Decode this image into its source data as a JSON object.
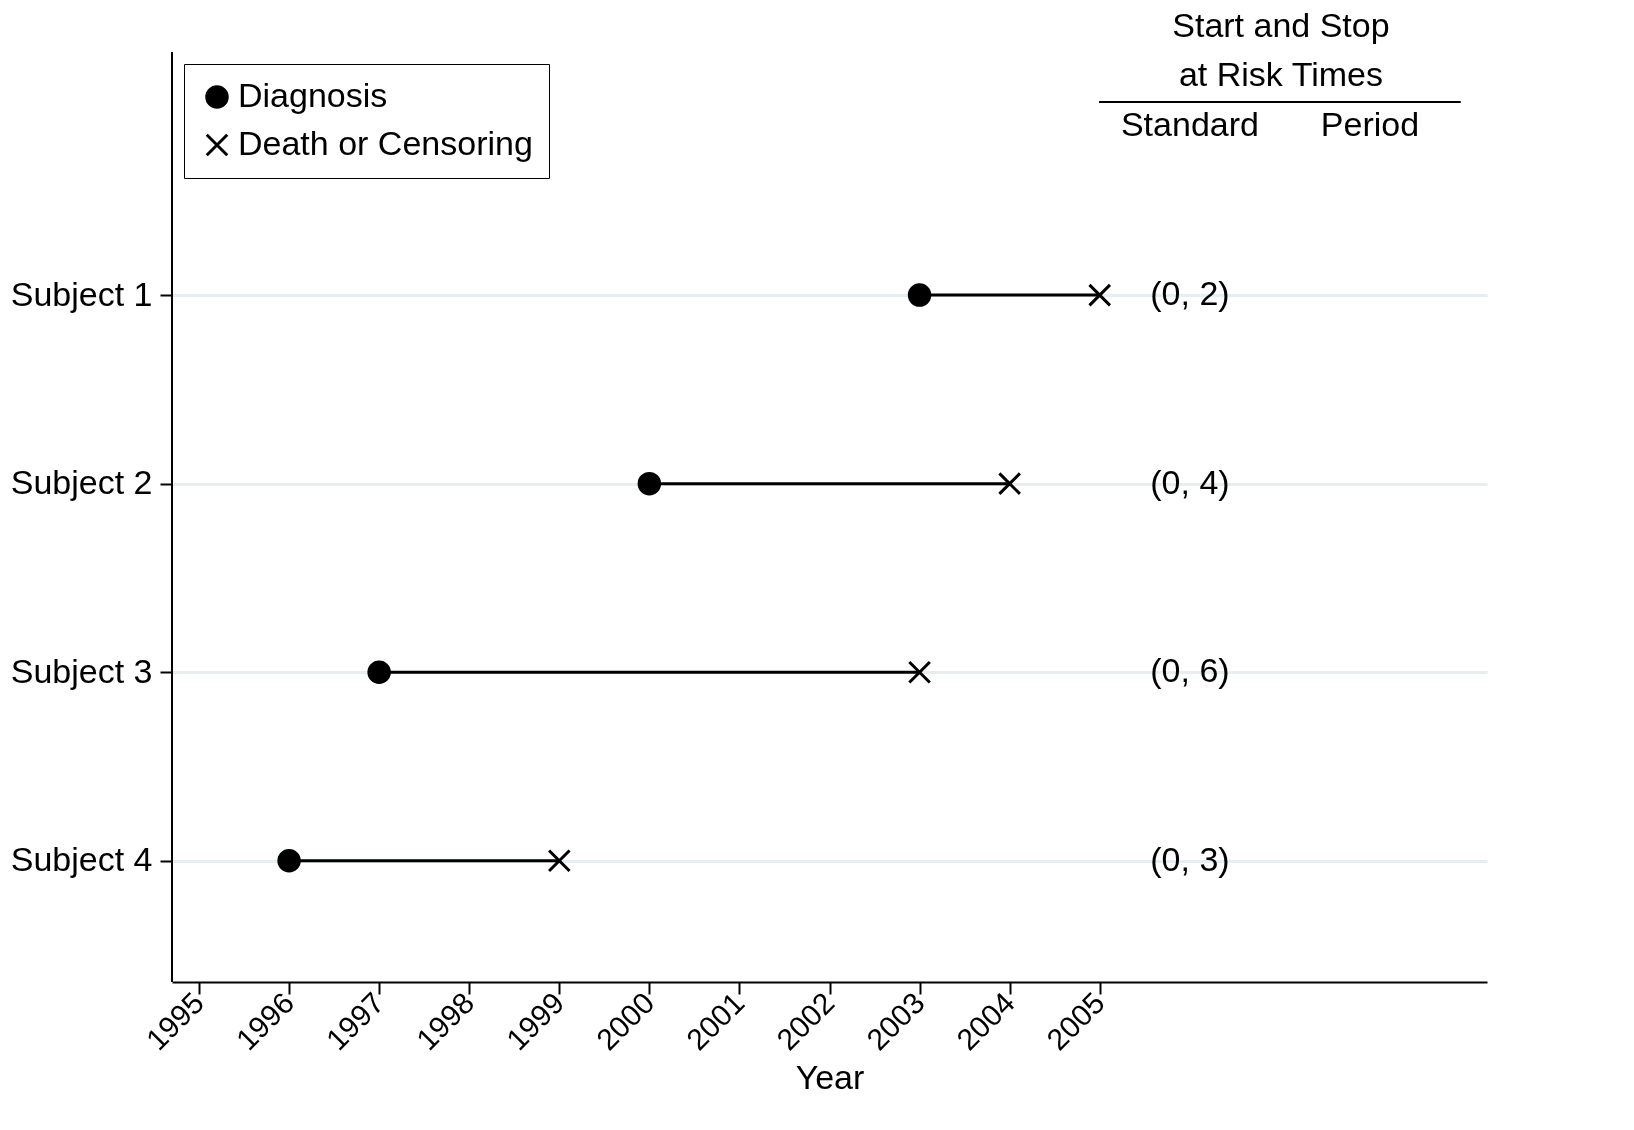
{
  "chart_data": {
    "type": "bar",
    "orientation": "horizontal",
    "xlabel": "Year",
    "categories": [
      "Subject 1",
      "Subject 2",
      "Subject 3",
      "Subject 4"
    ],
    "series": [
      {
        "type": "bar",
        "color": "#000000",
        "base": [
          2003,
          2000,
          1997,
          1996
        ],
        "values": [
          2,
          4,
          6,
          3
        ]
      },
      {
        "type": "scatter",
        "name": "Diagnosis",
        "color": "#000000",
        "marker": "circle",
        "values": [
          2003,
          2000,
          1997,
          1996
        ]
      },
      {
        "type": "scatter",
        "name": "Death or Censoring",
        "color": "#000000",
        "marker": "cross",
        "values": [
          2005,
          2004,
          2003,
          1999
        ]
      }
    ],
    "xlim": [
      1994.7,
      2009.3
    ],
    "xticks": [
      1995,
      1996,
      1997,
      1998,
      1999,
      2000,
      2001,
      2002,
      2003,
      2004,
      2005
    ],
    "grid": "y",
    "legend": "top left",
    "annotations": [
      "Start and Stop",
      "at Risk Times",
      "Standard",
      "Period",
      "(0, 2)",
      "(0, 4)",
      "(0, 6)",
      "(0, 3)"
    ]
  }
}
